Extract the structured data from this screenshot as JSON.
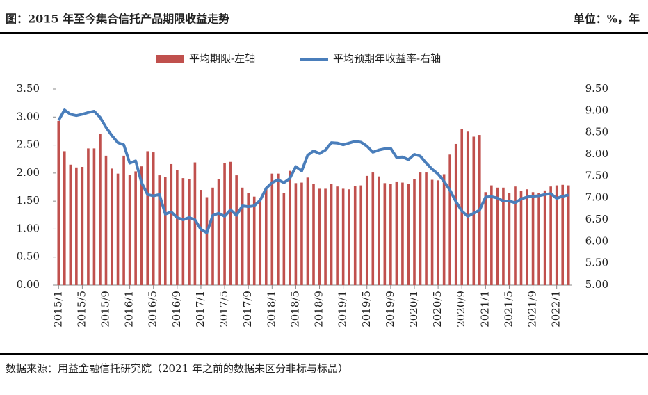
{
  "header": {
    "title": "图：2015 年至今集合信托产品期限收益走势",
    "unit": "单位：%，年"
  },
  "chart_data": {
    "type": "bar-line",
    "categories": [
      "2015/1",
      null,
      null,
      null,
      "2015/5",
      null,
      null,
      null,
      "2015/9",
      null,
      null,
      null,
      "2016/1",
      null,
      null,
      null,
      "2016/5",
      null,
      null,
      null,
      "2016/9",
      null,
      null,
      null,
      "2017/1",
      null,
      null,
      null,
      "2017/5",
      null,
      null,
      null,
      "2017/9",
      null,
      null,
      null,
      "2018/1",
      null,
      null,
      null,
      "2018/5",
      null,
      null,
      null,
      "2018/9",
      null,
      null,
      null,
      "2019/1",
      null,
      null,
      null,
      "2019/5",
      null,
      null,
      null,
      "2019/9",
      null,
      null,
      null,
      "2020/1",
      null,
      null,
      null,
      "2020/5",
      null,
      null,
      null,
      "2020/9",
      null,
      null,
      null,
      "2021/1",
      null,
      null,
      null,
      "2021/5",
      null,
      null,
      null,
      "2021/9",
      null,
      null,
      null,
      "2022/1",
      null,
      null
    ],
    "series": [
      {
        "name": "平均期限-左轴",
        "type": "bar",
        "color": "#c0504d",
        "axis": "y",
        "values": [
          2.93,
          2.39,
          2.15,
          2.1,
          2.11,
          2.44,
          2.44,
          2.7,
          2.31,
          2.08,
          1.99,
          2.31,
          1.97,
          2.03,
          2.12,
          2.39,
          2.37,
          1.96,
          1.93,
          2.16,
          2.05,
          1.91,
          1.89,
          2.19,
          1.7,
          1.57,
          1.74,
          1.89,
          2.18,
          2.2,
          1.96,
          1.74,
          1.64,
          1.58,
          1.52,
          1.74,
          1.99,
          1.99,
          1.65,
          2.04,
          1.82,
          1.83,
          1.92,
          1.8,
          1.72,
          1.72,
          1.8,
          1.76,
          1.72,
          1.71,
          1.77,
          1.78,
          1.95,
          2.01,
          1.94,
          1.82,
          1.81,
          1.85,
          1.83,
          1.8,
          1.89,
          2.01,
          2.01,
          1.88,
          1.87,
          1.98,
          2.33,
          2.52,
          2.78,
          2.74,
          2.65,
          2.68,
          1.66,
          1.78,
          1.74,
          1.74,
          1.65,
          1.76,
          1.68,
          1.71,
          1.66,
          1.65,
          1.69,
          1.76,
          1.78,
          1.79,
          1.78
        ]
      },
      {
        "name": "平均预期年收益率-右轴",
        "type": "line",
        "color": "#4a7ebb",
        "axis": "y2",
        "values": [
          8.78,
          9.02,
          8.92,
          8.89,
          8.92,
          8.96,
          8.99,
          8.85,
          8.62,
          8.43,
          8.27,
          8.22,
          7.8,
          7.85,
          7.35,
          7.08,
          7.05,
          7.08,
          6.63,
          6.68,
          6.55,
          6.5,
          6.55,
          6.5,
          6.28,
          6.2,
          6.6,
          6.65,
          6.58,
          6.73,
          6.6,
          6.82,
          6.8,
          6.82,
          6.95,
          7.22,
          7.35,
          7.42,
          7.35,
          7.45,
          7.72,
          7.62,
          7.98,
          8.08,
          8.02,
          8.1,
          8.27,
          8.26,
          8.22,
          8.26,
          8.3,
          8.28,
          8.19,
          8.05,
          8.1,
          8.13,
          8.14,
          7.93,
          7.94,
          7.88,
          8.0,
          7.96,
          7.8,
          7.66,
          7.55,
          7.38,
          7.18,
          6.92,
          6.7,
          6.58,
          6.65,
          6.72,
          7.02,
          7.03,
          7.0,
          6.93,
          6.93,
          6.89,
          6.98,
          7.02,
          7.04,
          7.05,
          7.08,
          7.1,
          6.99,
          7.04,
          7.07
        ]
      }
    ],
    "ylim": [
      0,
      3.5
    ],
    "yticks": [
      {
        "value": 0,
        "label": "0.00"
      },
      {
        "value": 0.5,
        "label": "0.50"
      },
      {
        "value": 1,
        "label": "1.00"
      },
      {
        "value": 1.5,
        "label": "1.50"
      },
      {
        "value": 2,
        "label": "2.00"
      },
      {
        "value": 2.5,
        "label": "2.50"
      },
      {
        "value": 3,
        "label": "3.00"
      },
      {
        "value": 3.5,
        "label": "3.50"
      }
    ],
    "y2lim": [
      5,
      9.5
    ],
    "y2ticks": [
      {
        "value": 5,
        "label": "5.00"
      },
      {
        "value": 5.5,
        "label": "5.50"
      },
      {
        "value": 6,
        "label": "6.00"
      },
      {
        "value": 6.5,
        "label": "6.50"
      },
      {
        "value": 7,
        "label": "7.00"
      },
      {
        "value": 7.5,
        "label": "7.50"
      },
      {
        "value": 8,
        "label": "8.00"
      },
      {
        "value": 8.5,
        "label": "8.50"
      },
      {
        "value": 9,
        "label": "9.00"
      },
      {
        "value": 9.5,
        "label": "9.50"
      }
    ],
    "grid": false,
    "legend": "top"
  },
  "source": "数据来源：用益金融信托研究院（2021 年之前的数据未区分非标与标品）"
}
